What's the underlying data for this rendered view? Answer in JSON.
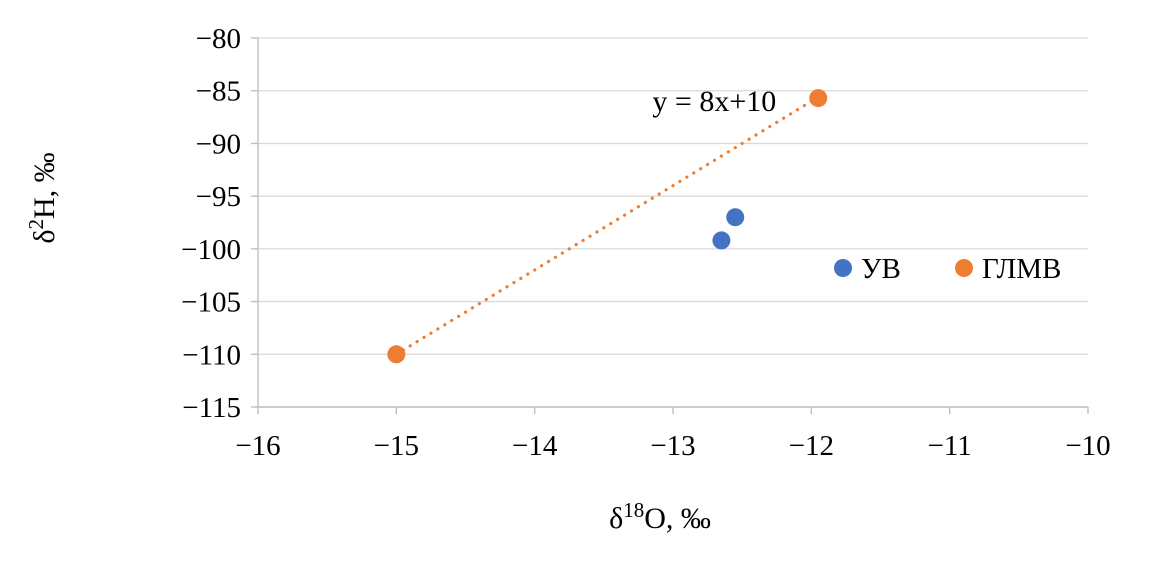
{
  "chart_data": {
    "type": "scatter",
    "title": "",
    "xlabel": {
      "prefix": "δ",
      "superscript": "18",
      "suffix": "O, ‰"
    },
    "ylabel": {
      "prefix": "δ",
      "superscript": "2",
      "suffix": "H, ‰"
    },
    "xlim": [
      -16,
      -10
    ],
    "ylim": [
      -115,
      -80
    ],
    "x_ticks": [
      -16,
      -15,
      -14,
      -13,
      -12,
      -11,
      -10
    ],
    "y_ticks": [
      -80,
      -85,
      -90,
      -95,
      -100,
      -105,
      -110,
      -115
    ],
    "grid": "horizontal-only",
    "legend": {
      "position": "inside-right",
      "items": [
        "УВ",
        "ГЛМВ"
      ]
    },
    "series": [
      {
        "name": "УВ",
        "color": "#4472C4",
        "points": [
          [
            -12.55,
            -97.0
          ],
          [
            -12.65,
            -99.2
          ]
        ]
      },
      {
        "name": "ГЛМВ",
        "color": "#ED7D31",
        "points": [
          [
            -15.0,
            -110.0
          ],
          [
            -11.95,
            -85.7
          ]
        ]
      }
    ],
    "trendline": {
      "label": "y = 8x+10",
      "color": "#ED7D31",
      "style": "dotted",
      "x_start": -15.0,
      "x_end": -11.95,
      "equation": {
        "slope": 8,
        "intercept": 10
      }
    }
  },
  "colors": {
    "background": "#ffffff",
    "gridline": "#d9d9d9",
    "axis": "#bfbfbf",
    "text": "#000000"
  }
}
